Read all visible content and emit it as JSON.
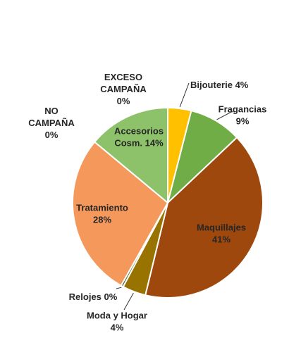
{
  "chart_data": {
    "type": "pie",
    "title": "",
    "slices": [
      {
        "label_lines": [
          "Bijouterie 4%"
        ],
        "category": "Bijouterie",
        "value": 4,
        "color": "#FFC000"
      },
      {
        "label_lines": [
          "Fragancias",
          "9%"
        ],
        "category": "Fragancias",
        "value": 9,
        "color": "#70AD47"
      },
      {
        "label_lines": [
          "Maquillajes",
          "41%"
        ],
        "category": "Maquillajes",
        "value": 41,
        "color": "#9E480E"
      },
      {
        "label_lines": [
          "Moda y Hogar",
          "4%"
        ],
        "category": "Moda y Hogar",
        "value": 4,
        "color": "#997300"
      },
      {
        "label_lines": [
          "Relojes 0%"
        ],
        "category": "Relojes",
        "value": 0.4,
        "color": "#43682B"
      },
      {
        "label_lines": [
          "Tratamiento",
          "28%"
        ],
        "category": "Tratamiento",
        "value": 28,
        "color": "#F4995B"
      },
      {
        "label_lines": [
          "NO",
          "CAMPAÑA",
          "0%"
        ],
        "category": "NO CAMPAÑA",
        "value": 0,
        "color": "#5B9BD5"
      },
      {
        "label_lines": [
          "Accesorios",
          "Cosm. 14%"
        ],
        "category": "Accesorios Cosm.",
        "value": 14,
        "color": "#8DC26A"
      },
      {
        "label_lines": [
          "EXCESO",
          "CAMPAÑA",
          "0%"
        ],
        "category": "EXCESO CAMPAÑA",
        "value": 0,
        "color": "#264478"
      }
    ]
  }
}
